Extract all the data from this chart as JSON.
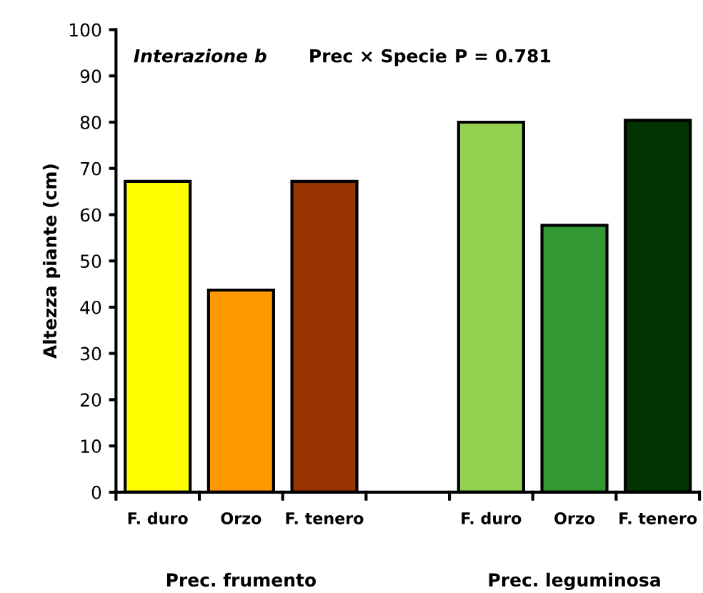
{
  "chart_data": {
    "type": "bar",
    "ylabel": "Altezza piante (cm)",
    "categories": [
      "F. duro",
      "Orzo",
      "F. tenero",
      null,
      "F. duro",
      "Orzo",
      "F. tenero"
    ],
    "values": [
      67.2,
      43.7,
      67.2,
      null,
      80,
      57.7,
      80.4
    ],
    "colors": [
      "#ffff00",
      "#ff9900",
      "#993300",
      "#ffffff",
      "#92d050",
      "#339933",
      "#003300"
    ],
    "ylim": [
      0,
      100
    ],
    "yticks": [
      0,
      10,
      20,
      30,
      40,
      50,
      60,
      70,
      80,
      90,
      100
    ],
    "grid": false,
    "legend": false,
    "annotations": [
      "Interazione b",
      "Prec × Specie",
      "P = 0.781",
      "Prec. frumento",
      "Prec. leguminosa"
    ]
  }
}
